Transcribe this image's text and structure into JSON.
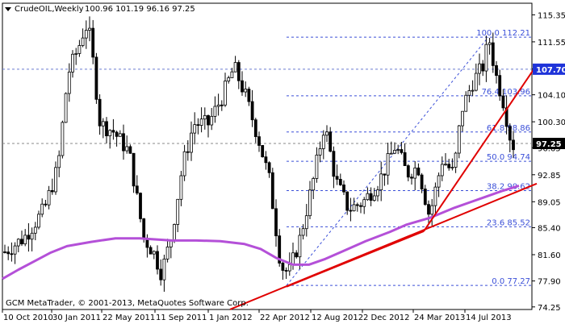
{
  "header": {
    "symbol": "CrudeOIL,Weekly",
    "ohlc": "100.96 101.19 96.16 97.25",
    "menu_icon": "triangle-down-icon"
  },
  "footer": {
    "copyright": "GCM MetaTrader, © 2001-2013, MetaQuotes Software Corp."
  },
  "colors": {
    "background": "#ffffff",
    "candles": "#000000",
    "moving_average": "#b450d8",
    "trendlines": "#e00000",
    "fib_levels": "#3a4fd8",
    "grid": "#6a7bd0",
    "current_price_bg": "#000000",
    "highlight_level_bg": "#1e33d9"
  },
  "chart_data": {
    "type": "candlestick",
    "title": "CrudeOIL,Weekly",
    "x_tick_labels": [
      "10 Oct 2010",
      "30 Jan 2011",
      "22 May 2011",
      "11 Sep 2011",
      "1 Jan 2012",
      "22 Apr 2012",
      "12 Aug 2012",
      "2 Dec 2012",
      "24 Mar 2013",
      "14 Jul 2013"
    ],
    "y_tick_labels": [
      "115.35",
      "111.55",
      "107.75",
      "104.10",
      "100.30",
      "96.65",
      "92.85",
      "89.05",
      "85.40",
      "81.60",
      "77.90",
      "74.25"
    ],
    "ylim": [
      74.25,
      115.35
    ],
    "current_price": "97.25",
    "highlight_level": "107.70",
    "fibonacci_levels": [
      {
        "label": "100.0 112.21",
        "ratio": 100.0,
        "price": 112.21
      },
      {
        "label": "76.4 103.96",
        "ratio": 76.4,
        "price": 103.96
      },
      {
        "label": "61.8 98.86",
        "ratio": 61.8,
        "price": 98.86
      },
      {
        "label": "50.0 94.74",
        "ratio": 50.0,
        "price": 94.74
      },
      {
        "label": "38.2 90.62",
        "ratio": 38.2,
        "price": 90.62
      },
      {
        "label": "23.6 85.52",
        "ratio": 23.6,
        "price": 85.52
      },
      {
        "label": "0.0 77.27",
        "ratio": 0.0,
        "price": 77.27
      }
    ],
    "dashed_levels": [
      107.7,
      97.25
    ],
    "moving_average": {
      "name": "",
      "points": [
        [
          0,
          78.2
        ],
        [
          20,
          79.5
        ],
        [
          40,
          80.7
        ],
        [
          60,
          81.9
        ],
        [
          80,
          82.8
        ],
        [
          110,
          83.4
        ],
        [
          140,
          83.9
        ],
        [
          170,
          83.9
        ],
        [
          210,
          83.6
        ],
        [
          240,
          83.6
        ],
        [
          270,
          83.5
        ],
        [
          300,
          83.1
        ],
        [
          320,
          82.4
        ],
        [
          340,
          81.1
        ],
        [
          360,
          80.2
        ],
        [
          380,
          80.2
        ],
        [
          400,
          81.0
        ],
        [
          420,
          82.0
        ],
        [
          450,
          83.5
        ],
        [
          480,
          84.8
        ],
        [
          500,
          85.8
        ],
        [
          530,
          86.8
        ],
        [
          560,
          88.2
        ],
        [
          580,
          89.0
        ],
        [
          600,
          89.8
        ],
        [
          620,
          90.6
        ],
        [
          640,
          91.3
        ]
      ]
    },
    "trendlines": [
      {
        "points": [
          [
            285,
            73.9
          ],
          [
            665,
            91.6
          ]
        ]
      },
      {
        "points": [
          [
            355,
            77.1
          ],
          [
            525,
            84.9
          ]
        ]
      },
      {
        "points": [
          [
            525,
            84.9
          ],
          [
            665,
            108.3
          ]
        ]
      }
    ],
    "fib_diagonal": {
      "points": [
        [
          355,
          77.27
        ],
        [
          605,
          112.21
        ]
      ]
    }
  }
}
